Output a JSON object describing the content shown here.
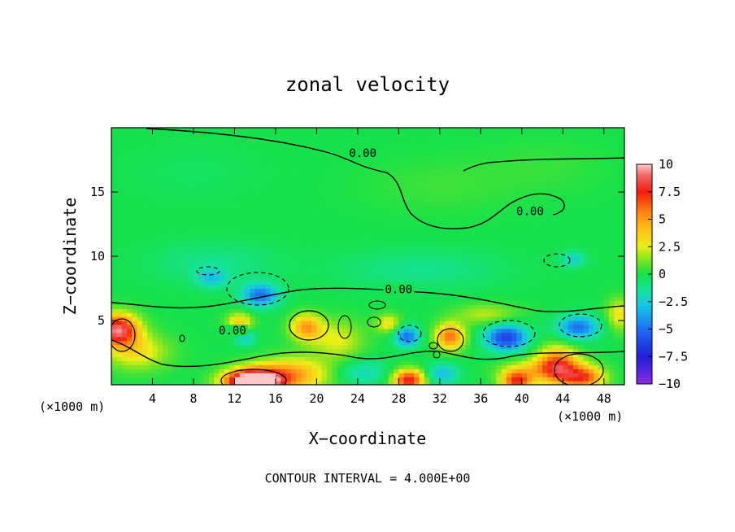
{
  "chart_data": {
    "type": "heatmap",
    "title": "zonal velocity",
    "xlabel": "X−coordinate",
    "ylabel": "Z−coordinate",
    "x_unit_left": "(×1000 m)",
    "x_unit_right": "(×1000 m)",
    "footer": "CONTOUR INTERVAL = 4.000E+00",
    "xlim": [
      0,
      50
    ],
    "ylim": [
      0,
      20
    ],
    "x_ticks": [
      {
        "v": 4,
        "label": "4"
      },
      {
        "v": 8,
        "label": "8"
      },
      {
        "v": 12,
        "label": "12"
      },
      {
        "v": 16,
        "label": "16"
      },
      {
        "v": 20,
        "label": "20"
      },
      {
        "v": 24,
        "label": "24"
      },
      {
        "v": 28,
        "label": "28"
      },
      {
        "v": 32,
        "label": "32"
      },
      {
        "v": 36,
        "label": "36"
      },
      {
        "v": 40,
        "label": "40"
      },
      {
        "v": 44,
        "label": "44"
      },
      {
        "v": 48,
        "label": "48"
      }
    ],
    "y_ticks": [
      {
        "v": 5,
        "label": "5"
      },
      {
        "v": 10,
        "label": "10"
      },
      {
        "v": 15,
        "label": "15"
      }
    ],
    "colorbar": {
      "range": [
        -10,
        10
      ],
      "ticks": [
        {
          "v": 10,
          "label": "10"
        },
        {
          "v": 7.5,
          "label": "7.5"
        },
        {
          "v": 5,
          "label": "5"
        },
        {
          "v": 2.5,
          "label": "2.5"
        },
        {
          "v": 0,
          "label": "0"
        },
        {
          "v": -2.5,
          "label": "−2.5"
        },
        {
          "v": -5,
          "label": "−5"
        },
        {
          "v": -7.5,
          "label": "−7.5"
        },
        {
          "v": -10,
          "label": "−10"
        }
      ],
      "stops": [
        {
          "v": -10,
          "color": "#8a2be2"
        },
        {
          "v": -7.5,
          "color": "#1f1fd6"
        },
        {
          "v": -5,
          "color": "#1e6ff2"
        },
        {
          "v": -3,
          "color": "#17c2e8"
        },
        {
          "v": -1.5,
          "color": "#16e3a0"
        },
        {
          "v": 0,
          "color": "#16e04a"
        },
        {
          "v": 1.5,
          "color": "#8ee61d"
        },
        {
          "v": 2.5,
          "color": "#e9f01a"
        },
        {
          "v": 4,
          "color": "#ffc21a"
        },
        {
          "v": 5.5,
          "color": "#ff8a14"
        },
        {
          "v": 7.5,
          "color": "#f01d10"
        },
        {
          "v": 9,
          "color": "#f06a6a"
        },
        {
          "v": 10,
          "color": "#ffc8c8"
        }
      ]
    },
    "contour_labels": [
      {
        "text": "0.00",
        "x": 24.5,
        "z": 17.9
      },
      {
        "text": "0.00",
        "x": 40.8,
        "z": 13.4
      },
      {
        "text": "0.00",
        "x": 28.0,
        "z": 7.3
      },
      {
        "text": "0.00",
        "x": 11.8,
        "z": 4.1
      }
    ],
    "features": [
      {
        "x": 0.6,
        "z": 4.3,
        "sx": 2.0,
        "sz": 1.2,
        "a": 9
      },
      {
        "x": 2.5,
        "z": 2.6,
        "sx": 3.0,
        "sz": 1.4,
        "a": 3
      },
      {
        "x": 13.8,
        "z": 0.3,
        "sx": 2.6,
        "sz": 0.9,
        "a": 14
      },
      {
        "x": 17.5,
        "z": 0.8,
        "sx": 3.5,
        "sz": 1.3,
        "a": 5
      },
      {
        "x": 12.5,
        "z": 4.8,
        "sx": 1.2,
        "sz": 0.8,
        "a": 4
      },
      {
        "x": 14.5,
        "z": 7.0,
        "sx": 1.8,
        "sz": 0.9,
        "a": -5
      },
      {
        "x": 13.0,
        "z": 3.8,
        "sx": 1.0,
        "sz": 0.7,
        "a": -3
      },
      {
        "x": 9.8,
        "z": 8.3,
        "sx": 1.5,
        "sz": 0.7,
        "a": -2.5
      },
      {
        "x": 19.0,
        "z": 4.5,
        "sx": 1.5,
        "sz": 1.0,
        "a": 5
      },
      {
        "x": 22.0,
        "z": 3.5,
        "sx": 2.5,
        "sz": 1.5,
        "a": 2.5
      },
      {
        "x": 24.5,
        "z": 1.0,
        "sx": 2.5,
        "sz": 1.0,
        "a": -2
      },
      {
        "x": 29.0,
        "z": 0.4,
        "sx": 1.5,
        "sz": 0.8,
        "a": 8
      },
      {
        "x": 28.8,
        "z": 3.8,
        "sx": 1.2,
        "sz": 0.8,
        "a": -5
      },
      {
        "x": 27.0,
        "z": 4.8,
        "sx": 1.2,
        "sz": 0.7,
        "a": 3
      },
      {
        "x": 33.0,
        "z": 3.8,
        "sx": 1.4,
        "sz": 1.0,
        "a": 6
      },
      {
        "x": 32.3,
        "z": 0.9,
        "sx": 1.6,
        "sz": 0.8,
        "a": -3
      },
      {
        "x": 38.5,
        "z": 3.7,
        "sx": 2.0,
        "sz": 1.0,
        "a": -6.5
      },
      {
        "x": 45.5,
        "z": 4.5,
        "sx": 2.0,
        "sz": 0.9,
        "a": -5
      },
      {
        "x": 43.5,
        "z": 1.5,
        "sx": 2.0,
        "sz": 1.4,
        "a": 7
      },
      {
        "x": 46.0,
        "z": 0.6,
        "sx": 2.0,
        "sz": 0.9,
        "a": 6.5
      },
      {
        "x": 39.5,
        "z": 0.3,
        "sx": 1.5,
        "sz": 0.8,
        "a": 7
      },
      {
        "x": 41.0,
        "z": 1.2,
        "sx": 3.0,
        "sz": 0.8,
        "a": 2.5
      },
      {
        "x": 49.5,
        "z": 5.5,
        "sx": 1.2,
        "sz": 1.2,
        "a": 3
      },
      {
        "x": 36.5,
        "z": 5.5,
        "sx": 3.0,
        "sz": 0.8,
        "a": 2
      },
      {
        "x": 45.0,
        "z": 9.8,
        "sx": 1.2,
        "sz": 0.6,
        "a": -2.5
      },
      {
        "x": 30.0,
        "z": 9.0,
        "sx": 8.0,
        "sz": 1.5,
        "a": -1.2
      },
      {
        "x": 10.0,
        "z": 9.5,
        "sx": 6.0,
        "sz": 1.6,
        "a": -1.2
      },
      {
        "x": 8.0,
        "z": 16.5,
        "sx": 6.0,
        "sz": 2.0,
        "a": -0.4
      },
      {
        "x": 32.0,
        "z": 15.5,
        "sx": 7.0,
        "sz": 2.0,
        "a": 0.5
      },
      {
        "x": 42.0,
        "z": 17.0,
        "sx": 6.0,
        "sz": 2.0,
        "a": 0.4
      }
    ]
  }
}
